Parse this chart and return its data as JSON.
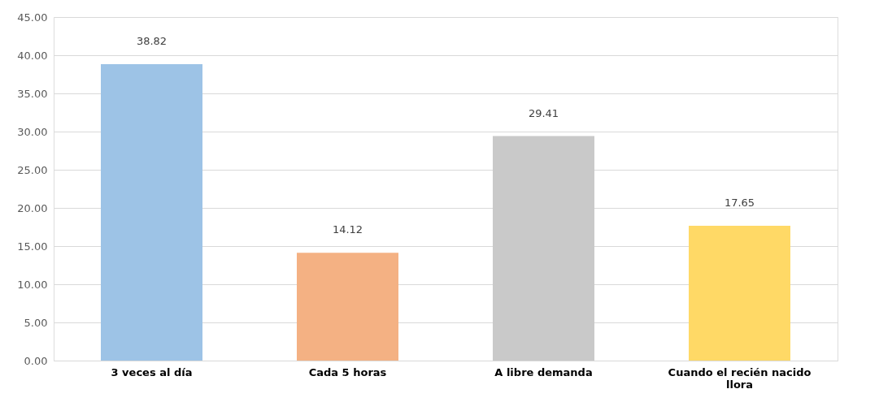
{
  "chart_data": {
    "type": "bar",
    "categories": [
      "3 veces al día",
      "Cada 5 horas",
      "A libre demanda",
      "Cuando el recién nacido llora"
    ],
    "values": [
      38.82,
      14.12,
      29.41,
      17.65
    ],
    "colors": [
      "#9dc3e6",
      "#f4b183",
      "#c9c9c9",
      "#ffd966"
    ],
    "ylim": [
      0,
      45
    ],
    "yticks": [
      {
        "value": 0,
        "label": "0.00"
      },
      {
        "value": 5,
        "label": "5.00"
      },
      {
        "value": 10,
        "label": "10.00"
      },
      {
        "value": 15,
        "label": "15.00"
      },
      {
        "value": 20,
        "label": "20.00"
      },
      {
        "value": 25,
        "label": "25.00"
      },
      {
        "value": 30,
        "label": "30.00"
      },
      {
        "value": 35,
        "label": "35.00"
      },
      {
        "value": 40,
        "label": "40.00"
      },
      {
        "value": 45,
        "label": "45.00"
      }
    ],
    "grid": "y",
    "data_labels": true
  }
}
